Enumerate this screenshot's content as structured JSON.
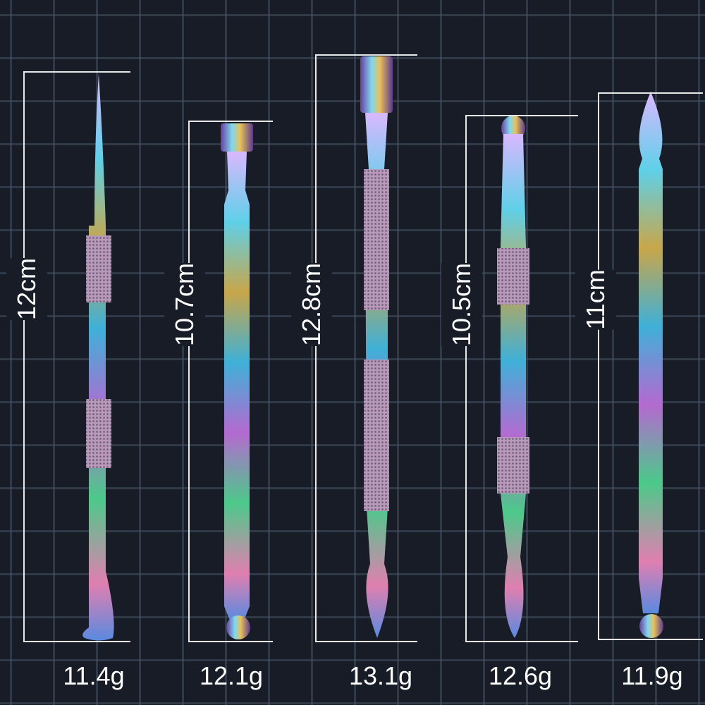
{
  "tools": [
    {
      "length": "12cm",
      "weight": "11.4g"
    },
    {
      "length": "10.7cm",
      "weight": "12.1g"
    },
    {
      "length": "12.8cm",
      "weight": "13.1g"
    },
    {
      "length": "10.5cm",
      "weight": "12.6g"
    },
    {
      "length": "11cm",
      "weight": "11.9g"
    }
  ],
  "colors": {
    "background": "#171c27",
    "grid": "#465062",
    "lines": "#e8e8e8",
    "text": "#ffffff"
  }
}
